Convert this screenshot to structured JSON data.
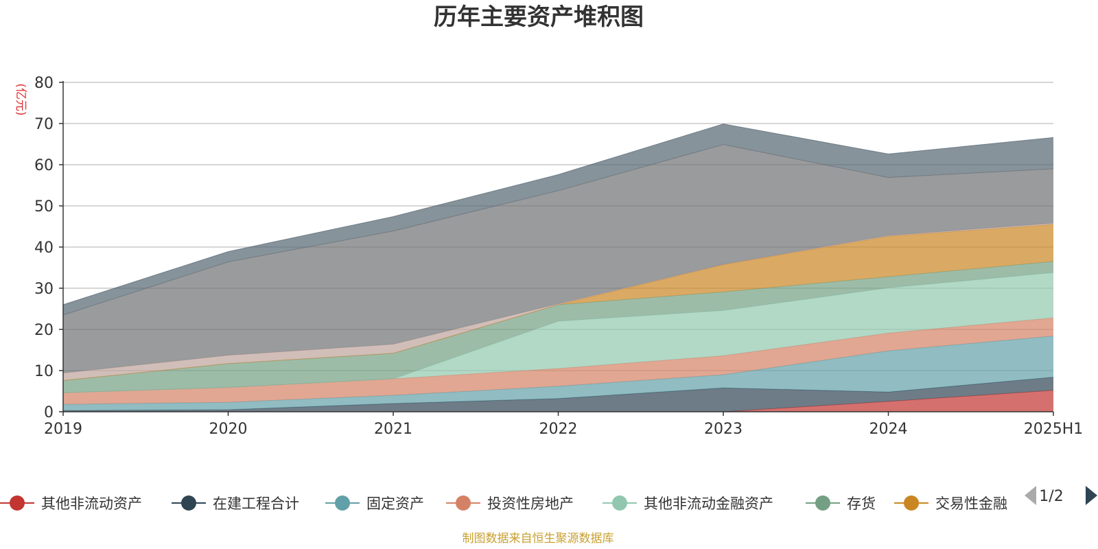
{
  "chart_data": {
    "type": "area",
    "stacked": true,
    "title": "历年主要资产堆积图",
    "ylabel": "(亿元)",
    "xlabel": "",
    "ylim": [
      0,
      80
    ],
    "yticks": [
      0,
      10,
      20,
      30,
      40,
      50,
      60,
      70,
      80
    ],
    "x": [
      "2019",
      "2020",
      "2021",
      "2022",
      "2023",
      "2024",
      "2025H1"
    ],
    "grid": true,
    "legend_position": "bottom",
    "series": [
      {
        "name": "其他非流动资产",
        "color": "#c23531",
        "values": [
          0,
          0,
          0,
          0,
          0,
          2.5,
          5.2
        ]
      },
      {
        "name": "在建工程合计",
        "color": "#2f4554",
        "values": [
          0.3,
          0.5,
          2.0,
          3.2,
          5.8,
          2.3,
          3.2
        ]
      },
      {
        "name": "固定资产",
        "color": "#61a0a8",
        "values": [
          1.5,
          1.8,
          2.0,
          3.0,
          3.2,
          10.0,
          10.0
        ]
      },
      {
        "name": "投资性房地产",
        "color": "#d48265",
        "values": [
          2.8,
          3.6,
          4.0,
          4.3,
          4.6,
          4.3,
          4.4
        ]
      },
      {
        "name": "其他非流动金融资产",
        "color": "#91c7ae",
        "values": [
          0,
          0,
          0,
          11.5,
          11.0,
          11.0,
          11.0
        ]
      },
      {
        "name": "存货",
        "color": "#749f83",
        "values": [
          3.0,
          5.8,
          6.2,
          4.0,
          4.5,
          2.7,
          2.7
        ]
      },
      {
        "name": "交易性金融资产",
        "color": "#ca8622",
        "values": [
          0,
          0,
          0,
          0,
          6.6,
          9.8,
          9.0
        ]
      },
      {
        "name": "",
        "color": "#bda29a",
        "values": [
          1.8,
          2.0,
          2.2,
          0.2,
          0.1,
          0.2,
          0.3
        ]
      },
      {
        "name": "",
        "color": "#6e7074",
        "values": [
          14.1,
          22.7,
          27.5,
          27.5,
          29.1,
          14.1,
          13.2
        ]
      },
      {
        "name": "",
        "color": "#546570",
        "values": [
          2.5,
          2.5,
          3.5,
          3.9,
          5.0,
          5.7,
          7.6
        ]
      }
    ]
  },
  "legend": {
    "items": [
      {
        "label": "其他非流动资产",
        "color": "#c23531"
      },
      {
        "label": "在建工程合计",
        "color": "#2f4554"
      },
      {
        "label": "固定资产",
        "color": "#61a0a8"
      },
      {
        "label": "投资性房地产",
        "color": "#d48265"
      },
      {
        "label": "其他非流动金融资产",
        "color": "#91c7ae"
      },
      {
        "label": "存货",
        "color": "#749f83"
      },
      {
        "label": "交易性金融",
        "color": "#ca8622"
      }
    ],
    "page_indicator": "1/2",
    "prev_icon": "triangle-left-icon",
    "next_icon": "triangle-right-icon"
  },
  "source": "制图数据来自恒生聚源数据库"
}
